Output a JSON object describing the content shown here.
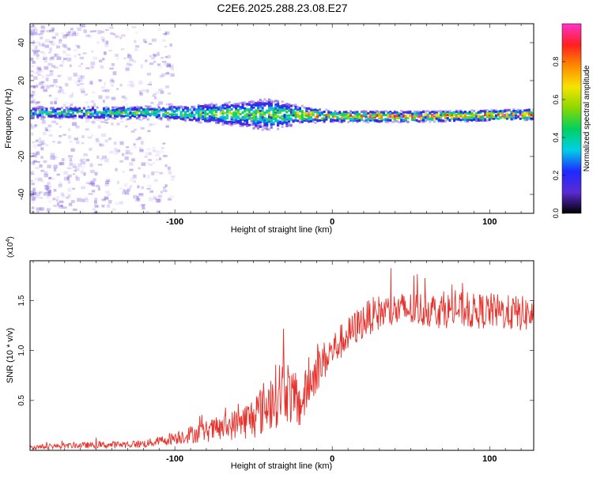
{
  "title": "C2E6.2025.288.23.08.E27",
  "colors": {
    "signal": "#e8302a",
    "frame": "#000000",
    "colorbar": [
      "#000000",
      "#5a2bd3",
      "#1e2aff",
      "#00cfe8",
      "#00d060",
      "#8bd800",
      "#f5e400",
      "#ff8a00",
      "#ff1f1f",
      "#ff33cc"
    ]
  },
  "chart_data": [
    {
      "type": "heatmap",
      "title": "",
      "xlabel": "Height of straight line (km)",
      "ylabel": "Frequency (Hz)",
      "xlim": [
        -192,
        128
      ],
      "ylim": [
        -50,
        50
      ],
      "xticks": [
        -100,
        0,
        100
      ],
      "xtick_labels": [
        "-100",
        "0",
        "100"
      ],
      "yticks": [
        -40,
        -20,
        0,
        20,
        40
      ],
      "ytick_labels": [
        "-40",
        "-20",
        "0",
        "20",
        "40"
      ],
      "colorbar": {
        "label": "Normalized spectral amplitude",
        "range": [
          0,
          1
        ],
        "ticks": [
          0.0,
          0.2,
          0.4,
          0.6,
          0.8
        ],
        "tick_labels": [
          "0.0",
          "0.2",
          "0.4",
          "0.6",
          "0.8"
        ]
      },
      "band": {
        "center_hz": [
          [
            -190,
            3
          ],
          [
            -110,
            3
          ],
          [
            -40,
            2
          ],
          [
            -20,
            2
          ],
          [
            0,
            1
          ],
          [
            60,
            1
          ],
          [
            128,
            2
          ]
        ],
        "halfwidth_hz": [
          [
            -190,
            3
          ],
          [
            -100,
            4
          ],
          [
            -60,
            7
          ],
          [
            -40,
            9
          ],
          [
            -22,
            5
          ],
          [
            0,
            3
          ],
          [
            128,
            3
          ]
        ],
        "peak_amplitude": [
          [
            -190,
            0.5
          ],
          [
            -100,
            0.55
          ],
          [
            -60,
            0.6
          ],
          [
            -30,
            0.65
          ],
          [
            -15,
            0.8
          ],
          [
            50,
            0.95
          ],
          [
            128,
            0.9
          ]
        ]
      }
    },
    {
      "type": "line",
      "title": "",
      "xlabel": "Height of straight line (km)",
      "ylabel": "SNR (10 * v/v)",
      "scale_label": "(x10",
      "scale_exponent": "4",
      "xlim": [
        -192,
        128
      ],
      "ylim": [
        0,
        19000
      ],
      "xticks": [
        -100,
        0,
        100
      ],
      "xtick_labels": [
        "-100",
        "0",
        "100"
      ],
      "yticks": [
        5000,
        10000,
        15000
      ],
      "ytick_labels": [
        "0.5",
        "1.0",
        "1.5"
      ],
      "series": [
        {
          "name": "SNR",
          "x": [
            -192,
            -180,
            -160,
            -140,
            -120,
            -110,
            -100,
            -90,
            -80,
            -70,
            -60,
            -50,
            -40,
            -35,
            -30,
            -25,
            -20,
            -15,
            -10,
            -5,
            0,
            5,
            10,
            15,
            20,
            25,
            30,
            40,
            50,
            60,
            70,
            80,
            90,
            100,
            110,
            120,
            128
          ],
          "mean": [
            300,
            400,
            500,
            550,
            650,
            900,
            1300,
            1600,
            1900,
            2200,
            2700,
            3300,
            4800,
            5600,
            6500,
            5000,
            4500,
            6500,
            8000,
            9000,
            10000,
            10800,
            11500,
            12300,
            13000,
            13500,
            13800,
            14000,
            14100,
            14100,
            14000,
            14100,
            13900,
            14000,
            13800,
            13700,
            13600
          ],
          "jitter": [
            200,
            250,
            300,
            350,
            400,
            500,
            700,
            900,
            1100,
            1300,
            1600,
            2200,
            3000,
            3300,
            3500,
            2800,
            2500,
            2400,
            2200,
            2000,
            1800,
            1800,
            1800,
            1800,
            1800,
            1800,
            1800,
            1800,
            1800,
            1800,
            1800,
            1800,
            1800,
            1800,
            1800,
            1800,
            1800
          ]
        }
      ]
    }
  ]
}
